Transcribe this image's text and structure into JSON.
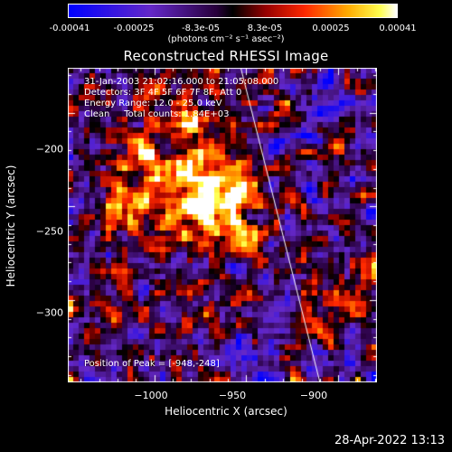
{
  "colorbar": {
    "ticks": [
      "-0.00041",
      "-0.00025",
      "-8.3e-05",
      "8.3e-05",
      "0.00025",
      "0.00041"
    ],
    "units": "(photons cm⁻² s⁻¹ asec⁻²)"
  },
  "title": "Reconstructed RHESSI Image",
  "info": {
    "time": "31-Jan-2003 21:02:16.000 to 21:05:08.000",
    "detectors": "Detectors: 3F 4F 5F 6F 7F 8F, Att 0",
    "energy": "Energy Range: 12.0 - 25.0 keV",
    "clean": "Clean     Total counts: 1.84E+03",
    "peak": "Position of Peak = [-948,-248]"
  },
  "axes": {
    "xlabel": "Heliocentric X (arcsec)",
    "ylabel": "Heliocentric Y (arcsec)",
    "xticks": [
      "−1000",
      "−950",
      "−900"
    ],
    "yticks": [
      "−200",
      "−250",
      "−300"
    ],
    "xlim": [
      -1047,
      -879
    ],
    "ylim": [
      -344,
      -176
    ]
  },
  "peak": {
    "x": -948,
    "y": -248
  },
  "limb": {
    "x_top": -953,
    "x_bottom": -910
  },
  "timestamp": "28-Apr-2022 13:13"
}
